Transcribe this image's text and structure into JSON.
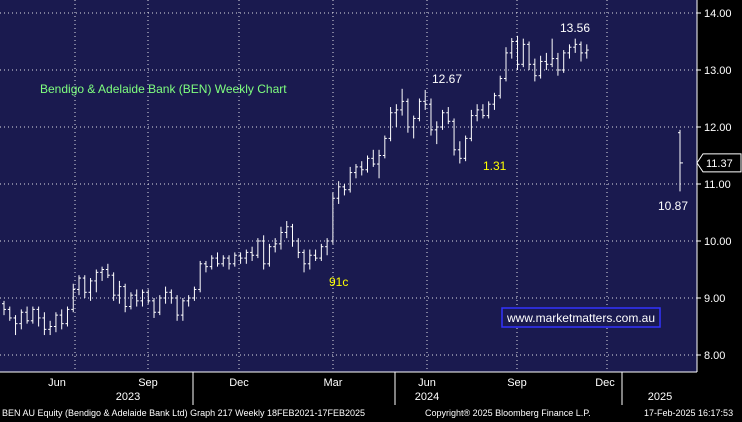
{
  "chart_data": {
    "type": "ohlc",
    "title": "Bendigo & Adelaide Bank (BEN) Weekly Chart",
    "watermark": "www.marketmatters.com.au",
    "y_ticks": [
      "8.00",
      "9.00",
      "10.00",
      "11.00",
      "12.00",
      "13.00",
      "14.00"
    ],
    "ylim": [
      7.75,
      14.1
    ],
    "x_month_labels": [
      "Jun",
      "Sep",
      "Dec",
      "Mar",
      "Jun",
      "Sep",
      "Dec"
    ],
    "x_year_labels": [
      "2023",
      "2024",
      "2025"
    ],
    "last_price": "11.37",
    "colors": {
      "background": "#1a1a4f",
      "axis_area": "#000000",
      "bars": "#ffffff",
      "grid": "#ffffff",
      "title": "#7fff7f",
      "annotation_yellow": "#ffff00",
      "watermark_text": "#ffffff",
      "watermark_bg": "#1a1a4f",
      "watermark_border": "#3333ff"
    },
    "annotations": [
      {
        "text": "13.56",
        "price": 13.56,
        "color": "white"
      },
      {
        "text": "12.67",
        "price": 12.67,
        "color": "white"
      },
      {
        "text": "1.31",
        "color": "yellow"
      },
      {
        "text": "91c",
        "color": "yellow"
      },
      {
        "text": "10.87",
        "price": 10.87,
        "color": "white"
      }
    ],
    "weeks": [
      {
        "o": 8.9,
        "h": 8.95,
        "l": 8.7,
        "c": 8.8
      },
      {
        "o": 8.8,
        "h": 8.85,
        "l": 8.6,
        "c": 8.65
      },
      {
        "o": 8.65,
        "h": 8.7,
        "l": 8.35,
        "c": 8.55
      },
      {
        "o": 8.55,
        "h": 8.8,
        "l": 8.45,
        "c": 8.75
      },
      {
        "o": 8.75,
        "h": 8.85,
        "l": 8.55,
        "c": 8.6
      },
      {
        "o": 8.6,
        "h": 8.85,
        "l": 8.55,
        "c": 8.8
      },
      {
        "o": 8.8,
        "h": 8.85,
        "l": 8.5,
        "c": 8.65
      },
      {
        "o": 8.65,
        "h": 8.75,
        "l": 8.35,
        "c": 8.45
      },
      {
        "o": 8.45,
        "h": 8.6,
        "l": 8.35,
        "c": 8.5
      },
      {
        "o": 8.5,
        "h": 8.75,
        "l": 8.4,
        "c": 8.7
      },
      {
        "o": 8.7,
        "h": 8.8,
        "l": 8.45,
        "c": 8.55
      },
      {
        "o": 8.55,
        "h": 8.85,
        "l": 8.5,
        "c": 8.8
      },
      {
        "o": 8.8,
        "h": 9.25,
        "l": 8.75,
        "c": 9.15
      },
      {
        "o": 9.15,
        "h": 9.4,
        "l": 9.05,
        "c": 9.35
      },
      {
        "o": 9.35,
        "h": 9.4,
        "l": 9.0,
        "c": 9.1
      },
      {
        "o": 9.1,
        "h": 9.35,
        "l": 8.95,
        "c": 9.3
      },
      {
        "o": 9.3,
        "h": 9.5,
        "l": 9.1,
        "c": 9.45
      },
      {
        "o": 9.45,
        "h": 9.55,
        "l": 9.3,
        "c": 9.5
      },
      {
        "o": 9.5,
        "h": 9.6,
        "l": 9.35,
        "c": 9.4
      },
      {
        "o": 9.4,
        "h": 9.45,
        "l": 8.95,
        "c": 9.05
      },
      {
        "o": 9.05,
        "h": 9.3,
        "l": 8.9,
        "c": 9.2
      },
      {
        "o": 9.2,
        "h": 9.25,
        "l": 8.75,
        "c": 8.85
      },
      {
        "o": 8.85,
        "h": 9.1,
        "l": 8.8,
        "c": 9.05
      },
      {
        "o": 9.05,
        "h": 9.15,
        "l": 8.85,
        "c": 8.95
      },
      {
        "o": 8.95,
        "h": 9.15,
        "l": 8.85,
        "c": 9.1
      },
      {
        "o": 9.1,
        "h": 9.15,
        "l": 8.9,
        "c": 8.95
      },
      {
        "o": 8.95,
        "h": 9.0,
        "l": 8.65,
        "c": 8.75
      },
      {
        "o": 8.75,
        "h": 9.05,
        "l": 8.7,
        "c": 9.0
      },
      {
        "o": 9.0,
        "h": 9.2,
        "l": 8.9,
        "c": 9.1
      },
      {
        "o": 9.1,
        "h": 9.15,
        "l": 8.9,
        "c": 9.0
      },
      {
        "o": 9.0,
        "h": 9.05,
        "l": 8.6,
        "c": 8.7
      },
      {
        "o": 8.7,
        "h": 9.0,
        "l": 8.6,
        "c": 8.95
      },
      {
        "o": 8.95,
        "h": 9.05,
        "l": 8.85,
        "c": 9.0
      },
      {
        "o": 9.0,
        "h": 9.2,
        "l": 8.95,
        "c": 9.15
      },
      {
        "o": 9.15,
        "h": 9.65,
        "l": 9.1,
        "c": 9.6
      },
      {
        "o": 9.6,
        "h": 9.65,
        "l": 9.45,
        "c": 9.55
      },
      {
        "o": 9.55,
        "h": 9.75,
        "l": 9.5,
        "c": 9.7
      },
      {
        "o": 9.7,
        "h": 9.8,
        "l": 9.55,
        "c": 9.6
      },
      {
        "o": 9.6,
        "h": 9.75,
        "l": 9.55,
        "c": 9.7
      },
      {
        "o": 9.7,
        "h": 9.75,
        "l": 9.5,
        "c": 9.6
      },
      {
        "o": 9.6,
        "h": 9.8,
        "l": 9.55,
        "c": 9.75
      },
      {
        "o": 9.75,
        "h": 9.8,
        "l": 9.6,
        "c": 9.7
      },
      {
        "o": 9.7,
        "h": 9.85,
        "l": 9.6,
        "c": 9.8
      },
      {
        "o": 9.8,
        "h": 9.9,
        "l": 9.65,
        "c": 9.75
      },
      {
        "o": 9.75,
        "h": 10.05,
        "l": 9.7,
        "c": 10.0
      },
      {
        "o": 10.0,
        "h": 10.1,
        "l": 9.5,
        "c": 9.6
      },
      {
        "o": 9.6,
        "h": 9.95,
        "l": 9.55,
        "c": 9.9
      },
      {
        "o": 9.9,
        "h": 10.05,
        "l": 9.8,
        "c": 9.95
      },
      {
        "o": 9.95,
        "h": 10.25,
        "l": 9.85,
        "c": 10.15
      },
      {
        "o": 10.15,
        "h": 10.35,
        "l": 10.05,
        "c": 10.25
      },
      {
        "o": 10.25,
        "h": 10.3,
        "l": 9.9,
        "c": 10.0
      },
      {
        "o": 10.0,
        "h": 10.05,
        "l": 9.7,
        "c": 9.8
      },
      {
        "o": 9.8,
        "h": 9.85,
        "l": 9.45,
        "c": 9.6
      },
      {
        "o": 9.6,
        "h": 9.85,
        "l": 9.5,
        "c": 9.75
      },
      {
        "o": 9.75,
        "h": 9.85,
        "l": 9.65,
        "c": 9.7
      },
      {
        "o": 9.7,
        "h": 9.95,
        "l": 9.65,
        "c": 9.9
      },
      {
        "o": 9.9,
        "h": 10.05,
        "l": 9.75,
        "c": 10.0
      },
      {
        "o": 10.0,
        "h": 10.85,
        "l": 9.95,
        "c": 10.75
      },
      {
        "o": 10.75,
        "h": 11.05,
        "l": 10.65,
        "c": 10.95
      },
      {
        "o": 10.95,
        "h": 11.0,
        "l": 10.8,
        "c": 10.9
      },
      {
        "o": 10.9,
        "h": 11.3,
        "l": 10.85,
        "c": 11.2
      },
      {
        "o": 11.2,
        "h": 11.35,
        "l": 11.1,
        "c": 11.3
      },
      {
        "o": 11.3,
        "h": 11.4,
        "l": 11.15,
        "c": 11.25
      },
      {
        "o": 11.25,
        "h": 11.5,
        "l": 11.2,
        "c": 11.45
      },
      {
        "o": 11.45,
        "h": 11.6,
        "l": 11.3,
        "c": 11.35
      },
      {
        "o": 11.35,
        "h": 11.6,
        "l": 11.1,
        "c": 11.5
      },
      {
        "o": 11.5,
        "h": 11.85,
        "l": 11.45,
        "c": 11.8
      },
      {
        "o": 11.8,
        "h": 12.35,
        "l": 11.75,
        "c": 12.25
      },
      {
        "o": 12.25,
        "h": 12.4,
        "l": 12.0,
        "c": 12.3
      },
      {
        "o": 12.3,
        "h": 12.67,
        "l": 12.2,
        "c": 12.45
      },
      {
        "o": 12.45,
        "h": 12.5,
        "l": 11.9,
        "c": 12.0
      },
      {
        "o": 12.0,
        "h": 12.2,
        "l": 11.8,
        "c": 12.15
      },
      {
        "o": 12.15,
        "h": 12.5,
        "l": 12.1,
        "c": 12.45
      },
      {
        "o": 12.45,
        "h": 12.65,
        "l": 12.3,
        "c": 12.4
      },
      {
        "o": 12.4,
        "h": 12.5,
        "l": 11.85,
        "c": 11.95
      },
      {
        "o": 11.95,
        "h": 12.1,
        "l": 11.7,
        "c": 12.0
      },
      {
        "o": 12.0,
        "h": 12.3,
        "l": 11.95,
        "c": 12.25
      },
      {
        "o": 12.25,
        "h": 12.35,
        "l": 12.05,
        "c": 12.1
      },
      {
        "o": 12.1,
        "h": 12.15,
        "l": 11.5,
        "c": 11.6
      },
      {
        "o": 11.6,
        "h": 11.75,
        "l": 11.36,
        "c": 11.45
      },
      {
        "o": 11.45,
        "h": 11.85,
        "l": 11.4,
        "c": 11.8
      },
      {
        "o": 11.8,
        "h": 12.3,
        "l": 11.75,
        "c": 12.2
      },
      {
        "o": 12.2,
        "h": 12.4,
        "l": 12.1,
        "c": 12.3
      },
      {
        "o": 12.3,
        "h": 12.4,
        "l": 12.15,
        "c": 12.2
      },
      {
        "o": 12.2,
        "h": 12.45,
        "l": 12.15,
        "c": 12.4
      },
      {
        "o": 12.4,
        "h": 12.6,
        "l": 12.3,
        "c": 12.55
      },
      {
        "o": 12.55,
        "h": 12.9,
        "l": 12.5,
        "c": 12.85
      },
      {
        "o": 12.85,
        "h": 13.4,
        "l": 12.8,
        "c": 13.3
      },
      {
        "o": 13.3,
        "h": 13.56,
        "l": 13.2,
        "c": 13.5
      },
      {
        "o": 13.5,
        "h": 13.6,
        "l": 13.0,
        "c": 13.1
      },
      {
        "o": 13.1,
        "h": 13.55,
        "l": 13.05,
        "c": 13.45
      },
      {
        "o": 13.45,
        "h": 13.5,
        "l": 13.0,
        "c": 13.1
      },
      {
        "o": 13.1,
        "h": 13.2,
        "l": 12.8,
        "c": 12.9
      },
      {
        "o": 12.9,
        "h": 13.25,
        "l": 12.85,
        "c": 13.15
      },
      {
        "o": 13.15,
        "h": 13.3,
        "l": 13.0,
        "c": 13.1
      },
      {
        "o": 13.1,
        "h": 13.55,
        "l": 13.05,
        "c": 13.2
      },
      {
        "o": 13.2,
        "h": 13.3,
        "l": 12.9,
        "c": 13.0
      },
      {
        "o": 13.0,
        "h": 13.35,
        "l": 12.95,
        "c": 13.3
      },
      {
        "o": 13.3,
        "h": 13.45,
        "l": 13.2,
        "c": 13.4
      },
      {
        "o": 13.4,
        "h": 13.55,
        "l": 13.3,
        "c": 13.45
      },
      {
        "o": 13.45,
        "h": 13.5,
        "l": 13.15,
        "c": 13.3
      },
      {
        "o": 13.3,
        "h": 13.45,
        "l": 13.2,
        "c": 13.35
      }
    ],
    "last_week": {
      "o": 11.9,
      "h": 11.95,
      "l": 10.87,
      "c": 11.37
    }
  },
  "footer": {
    "left": "BEN AU Equity (Bendigo & Adelaide Bank Ltd) Graph 217  Weekly 18FEB2021-17FEB2025",
    "center": "Copyright® 2025 Bloomberg Finance L.P.",
    "right": "17-Feb-2025 16:17:53"
  }
}
